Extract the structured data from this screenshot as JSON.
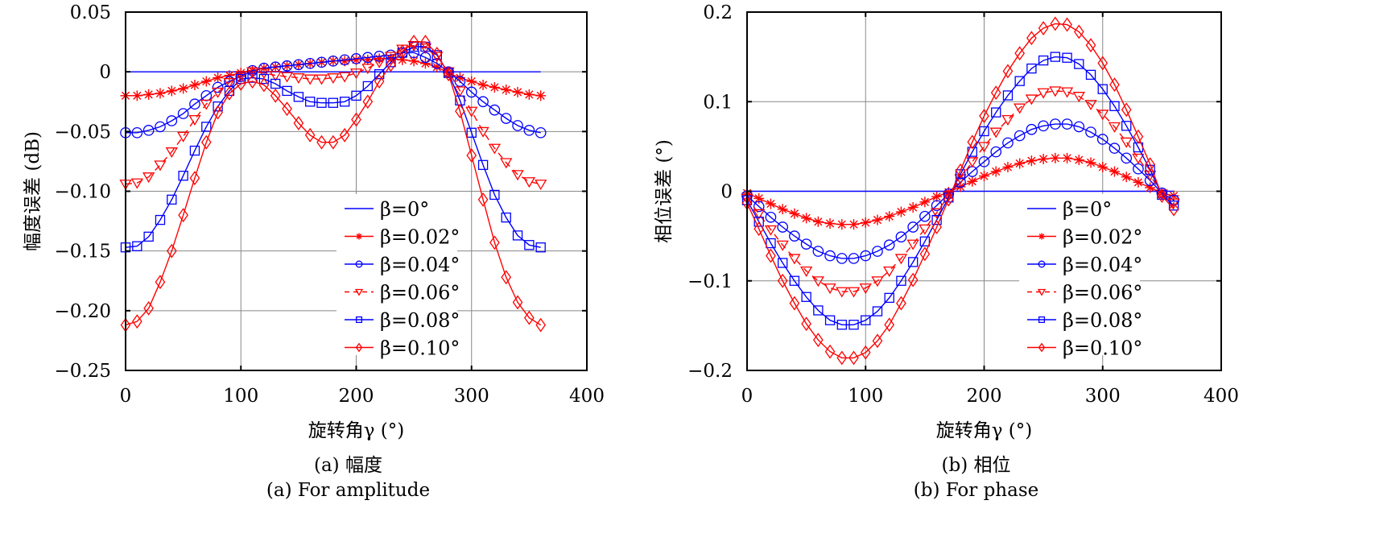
{
  "chart_data": [
    {
      "id": "amplitude",
      "type": "line",
      "xlabel": "旋转角γ (°)",
      "ylabel": "幅度误差 (dB)",
      "caption_cn": "(a) 幅度",
      "caption_en": "(a) For amplitude",
      "xlim": [
        0,
        400
      ],
      "ylim": [
        -0.25,
        0.05
      ],
      "xticks": [
        "0",
        "100",
        "200",
        "300",
        "400"
      ],
      "xtick_values": [
        0,
        100,
        200,
        300,
        400
      ],
      "yticks": [
        "0.05",
        "0",
        "−0.05",
        "−0.10",
        "−0.15",
        "−0.20",
        "−0.25"
      ],
      "ytick_values": [
        0.05,
        0,
        -0.05,
        -0.1,
        -0.15,
        -0.2,
        -0.25
      ],
      "grid": true,
      "legend_position": "bottom-right-inside",
      "x": [
        0,
        10,
        20,
        30,
        40,
        50,
        60,
        70,
        80,
        90,
        100,
        110,
        120,
        130,
        140,
        150,
        160,
        170,
        180,
        190,
        200,
        210,
        220,
        230,
        240,
        250,
        260,
        270,
        280,
        290,
        300,
        310,
        320,
        330,
        340,
        350,
        360
      ],
      "series": [
        {
          "name": "β=0°",
          "color": "#0000ff",
          "marker": "none",
          "dash": false,
          "values": [
            0,
            0,
            0,
            0,
            0,
            0,
            0,
            0,
            0,
            0,
            0,
            0,
            0,
            0,
            0,
            0,
            0,
            0,
            0,
            0,
            0,
            0,
            0,
            0,
            0,
            0,
            0,
            0,
            0,
            0,
            0,
            0,
            0,
            0,
            0,
            0,
            0
          ]
        },
        {
          "name": "β=0.02°",
          "color": "#ff0000",
          "marker": "star",
          "dash": false,
          "values": [
            -0.02,
            -0.02,
            -0.019,
            -0.018,
            -0.016,
            -0.014,
            -0.011,
            -0.008,
            -0.005,
            -0.003,
            -0.001,
            0.001,
            0.003,
            0.004,
            0.005,
            0.006,
            0.007,
            0.008,
            0.009,
            0.009,
            0.01,
            0.01,
            0.011,
            0.011,
            0.01,
            0.009,
            0.007,
            0.004,
            -0.001,
            -0.005,
            -0.008,
            -0.011,
            -0.013,
            -0.015,
            -0.017,
            -0.019,
            -0.02
          ]
        },
        {
          "name": "β=0.04°",
          "color": "#0000ff",
          "marker": "circle",
          "dash": false,
          "values": [
            -0.051,
            -0.051,
            -0.049,
            -0.046,
            -0.041,
            -0.035,
            -0.027,
            -0.02,
            -0.013,
            -0.008,
            -0.004,
            0.001,
            0.003,
            0.004,
            0.005,
            0.006,
            0.007,
            0.008,
            0.009,
            0.01,
            0.011,
            0.012,
            0.013,
            0.014,
            0.016,
            0.016,
            0.012,
            0.007,
            0.0,
            -0.008,
            -0.017,
            -0.025,
            -0.032,
            -0.039,
            -0.045,
            -0.049,
            -0.051
          ]
        },
        {
          "name": "β=0.06°",
          "color": "#ff0000",
          "marker": "triangle-down",
          "dash": true,
          "values": [
            -0.094,
            -0.093,
            -0.088,
            -0.078,
            -0.067,
            -0.054,
            -0.04,
            -0.027,
            -0.017,
            -0.009,
            -0.003,
            0.0,
            -0.001,
            -0.003,
            -0.004,
            -0.005,
            -0.006,
            -0.006,
            -0.005,
            -0.004,
            -0.001,
            0.003,
            0.008,
            0.013,
            0.019,
            0.022,
            0.02,
            0.013,
            0.0,
            -0.016,
            -0.033,
            -0.05,
            -0.064,
            -0.076,
            -0.086,
            -0.092,
            -0.094
          ]
        },
        {
          "name": "β=0.08°",
          "color": "#0000ff",
          "marker": "square",
          "dash": false,
          "values": [
            -0.147,
            -0.146,
            -0.138,
            -0.124,
            -0.107,
            -0.087,
            -0.066,
            -0.046,
            -0.029,
            -0.016,
            -0.006,
            -0.005,
            -0.006,
            -0.01,
            -0.016,
            -0.021,
            -0.025,
            -0.026,
            -0.026,
            -0.025,
            -0.02,
            -0.012,
            -0.002,
            0.008,
            0.016,
            0.021,
            0.021,
            0.014,
            -0.001,
            -0.024,
            -0.051,
            -0.078,
            -0.103,
            -0.122,
            -0.137,
            -0.145,
            -0.147
          ]
        },
        {
          "name": "β=0.10°",
          "color": "#ff0000",
          "marker": "diamond",
          "dash": false,
          "values": [
            -0.212,
            -0.209,
            -0.198,
            -0.176,
            -0.15,
            -0.12,
            -0.089,
            -0.059,
            -0.034,
            -0.018,
            -0.01,
            -0.008,
            -0.011,
            -0.02,
            -0.031,
            -0.043,
            -0.053,
            -0.059,
            -0.059,
            -0.053,
            -0.04,
            -0.025,
            -0.008,
            0.006,
            0.017,
            0.025,
            0.025,
            0.015,
            -0.002,
            -0.033,
            -0.07,
            -0.107,
            -0.143,
            -0.172,
            -0.193,
            -0.206,
            -0.212
          ]
        }
      ]
    },
    {
      "id": "phase",
      "type": "line",
      "xlabel": "旋转角γ (°)",
      "ylabel": "相位误差 (°)",
      "caption_cn": "(b) 相位",
      "caption_en": "(b) For phase",
      "xlim": [
        0,
        400
      ],
      "ylim": [
        -0.2,
        0.2
      ],
      "xticks": [
        "0",
        "100",
        "200",
        "300",
        "400"
      ],
      "xtick_values": [
        0,
        100,
        200,
        300,
        400
      ],
      "yticks": [
        "0.2",
        "0.1",
        "0",
        "−0.1",
        "−0.2"
      ],
      "ytick_values": [
        0.2,
        0.1,
        0,
        -0.1,
        -0.2
      ],
      "grid": true,
      "legend_position": "bottom-right-inside",
      "x": [
        0,
        10,
        20,
        30,
        40,
        50,
        60,
        70,
        80,
        90,
        100,
        110,
        120,
        130,
        140,
        150,
        160,
        170,
        180,
        190,
        200,
        210,
        220,
        230,
        240,
        250,
        260,
        270,
        280,
        290,
        300,
        310,
        320,
        330,
        340,
        350,
        360
      ],
      "series": [
        {
          "name": "β=0°",
          "color": "#0000ff",
          "marker": "none",
          "dash": false,
          "values": [
            0,
            0,
            0,
            0,
            0,
            0,
            0,
            0,
            0,
            0,
            0,
            0,
            0,
            0,
            0,
            0,
            0,
            0,
            0,
            0,
            0,
            0,
            0,
            0,
            0,
            0,
            0,
            0,
            0,
            0,
            0,
            0,
            0,
            0,
            0,
            0,
            0
          ]
        },
        {
          "name": "β=0.02°",
          "color": "#ff0000",
          "marker": "star",
          "dash": false,
          "values": [
            -0.002,
            -0.008,
            -0.014,
            -0.02,
            -0.025,
            -0.03,
            -0.034,
            -0.036,
            -0.037,
            -0.037,
            -0.035,
            -0.032,
            -0.028,
            -0.023,
            -0.018,
            -0.012,
            -0.006,
            -0.001,
            0.005,
            0.011,
            0.017,
            0.022,
            0.027,
            0.031,
            0.034,
            0.036,
            0.037,
            0.037,
            0.035,
            0.032,
            0.027,
            0.022,
            0.016,
            0.01,
            0.004,
            -0.002,
            -0.005
          ]
        },
        {
          "name": "β=0.04°",
          "color": "#0000ff",
          "marker": "circle",
          "dash": false,
          "values": [
            -0.005,
            -0.017,
            -0.029,
            -0.04,
            -0.05,
            -0.059,
            -0.067,
            -0.072,
            -0.075,
            -0.075,
            -0.072,
            -0.067,
            -0.06,
            -0.051,
            -0.04,
            -0.028,
            -0.016,
            -0.003,
            0.01,
            0.022,
            0.033,
            0.044,
            0.054,
            0.062,
            0.069,
            0.073,
            0.075,
            0.075,
            0.072,
            0.066,
            0.058,
            0.048,
            0.037,
            0.025,
            0.012,
            -0.002,
            -0.01
          ]
        },
        {
          "name": "β=0.06°",
          "color": "#ff0000",
          "marker": "triangle-down",
          "dash": true,
          "values": [
            -0.008,
            -0.025,
            -0.043,
            -0.06,
            -0.075,
            -0.089,
            -0.1,
            -0.108,
            -0.112,
            -0.112,
            -0.108,
            -0.1,
            -0.089,
            -0.075,
            -0.059,
            -0.042,
            -0.024,
            -0.005,
            0.014,
            0.033,
            0.05,
            0.066,
            0.08,
            0.093,
            0.103,
            0.11,
            0.112,
            0.111,
            0.106,
            0.097,
            0.086,
            0.072,
            0.055,
            0.037,
            0.018,
            -0.003,
            -0.013
          ]
        },
        {
          "name": "β=0.08°",
          "color": "#0000ff",
          "marker": "square",
          "dash": false,
          "values": [
            -0.01,
            -0.034,
            -0.058,
            -0.08,
            -0.1,
            -0.118,
            -0.133,
            -0.144,
            -0.149,
            -0.149,
            -0.144,
            -0.134,
            -0.119,
            -0.1,
            -0.079,
            -0.056,
            -0.032,
            -0.007,
            0.019,
            0.044,
            0.067,
            0.088,
            0.107,
            0.123,
            0.137,
            0.146,
            0.15,
            0.149,
            0.142,
            0.13,
            0.114,
            0.095,
            0.073,
            0.049,
            0.024,
            -0.004,
            -0.016
          ]
        },
        {
          "name": "β=0.10°",
          "color": "#ff0000",
          "marker": "diamond",
          "dash": false,
          "values": [
            -0.013,
            -0.042,
            -0.072,
            -0.1,
            -0.125,
            -0.148,
            -0.166,
            -0.179,
            -0.186,
            -0.186,
            -0.18,
            -0.167,
            -0.149,
            -0.125,
            -0.099,
            -0.07,
            -0.04,
            -0.009,
            0.023,
            0.055,
            0.084,
            0.11,
            0.134,
            0.154,
            0.171,
            0.182,
            0.187,
            0.186,
            0.178,
            0.163,
            0.143,
            0.119,
            0.091,
            0.061,
            0.03,
            -0.005,
            -0.02
          ]
        }
      ]
    }
  ]
}
